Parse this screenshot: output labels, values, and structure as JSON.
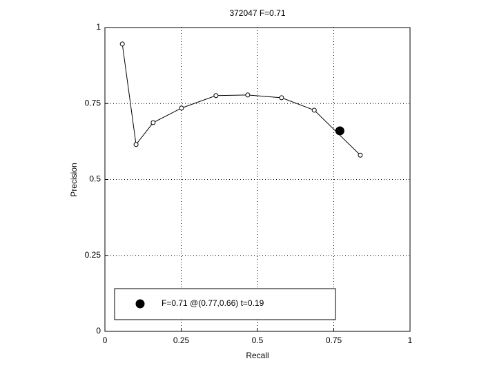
{
  "chart_data": {
    "type": "line",
    "title": "372047 F=0.71",
    "xlabel": "Recall",
    "ylabel": "Precision",
    "series": [
      {
        "x": [
          0.057,
          0.102,
          0.158,
          0.251,
          0.364,
          0.468,
          0.579,
          0.686,
          0.837
        ],
        "values": [
          0.946,
          0.615,
          0.687,
          0.735,
          0.776,
          0.778,
          0.769,
          0.728,
          0.58
        ],
        "color": "#000000",
        "marker": "open-circle",
        "line": true
      },
      {
        "name": "F=0.71 @(0.77,0.66) t=0.19",
        "x": [
          0.77
        ],
        "values": [
          0.66
        ],
        "color": "#000000",
        "marker": "filled-circle",
        "line": false
      }
    ],
    "xlim": [
      0,
      1
    ],
    "ylim": [
      0,
      1
    ],
    "xticks": [
      0,
      0.25,
      0.5,
      0.75,
      1
    ],
    "yticks": [
      0,
      0.25,
      0.5,
      0.75,
      1
    ],
    "grid": true,
    "legend": "lower left"
  }
}
